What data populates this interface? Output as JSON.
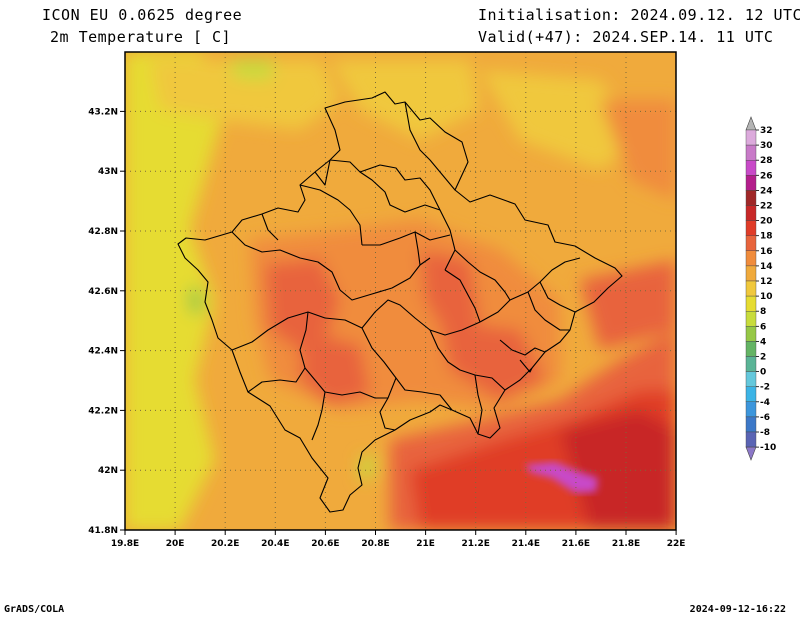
{
  "header": {
    "model": "ICON EU 0.0625 degree",
    "variable": "2m Temperature [ C]",
    "init": "Initialisation: 2024.09.12. 12 UTC",
    "valid": "Valid(+47): 2024.SEP.14. 11 UTC"
  },
  "axes": {
    "x_ticks": [
      "19.8E",
      "20E",
      "20.2E",
      "20.4E",
      "20.6E",
      "20.8E",
      "21E",
      "21.2E",
      "21.4E",
      "21.6E",
      "21.8E",
      "22E"
    ],
    "y_ticks": [
      "41.8N",
      "42N",
      "42.2N",
      "42.4N",
      "42.6N",
      "42.8N",
      "43N",
      "43.2N"
    ]
  },
  "colorbar": {
    "labels": [
      "32",
      "30",
      "28",
      "26",
      "24",
      "22",
      "20",
      "18",
      "16",
      "14",
      "12",
      "10",
      "8",
      "6",
      "4",
      "2",
      "0",
      "-2",
      "-4",
      "-6",
      "-8",
      "-10"
    ],
    "colors": [
      "#dcaadc",
      "#c87ac8",
      "#c84ac8",
      "#b41e8c",
      "#a02828",
      "#c82828",
      "#e03c28",
      "#e8643c",
      "#f08c3c",
      "#f0aa3c",
      "#f0c83c",
      "#e6dc32",
      "#c8dc3c",
      "#96c846",
      "#64b464",
      "#5ab496",
      "#64c8dc",
      "#3cb4e6",
      "#3c96dc",
      "#3c78c8",
      "#5a64b4",
      "#8c78c8"
    ]
  },
  "footer": {
    "left": "GrADS/COLA",
    "right": "2024-09-12-16:22"
  },
  "colors": {
    "base": "#f0aa3c",
    "border": "#000000"
  }
}
